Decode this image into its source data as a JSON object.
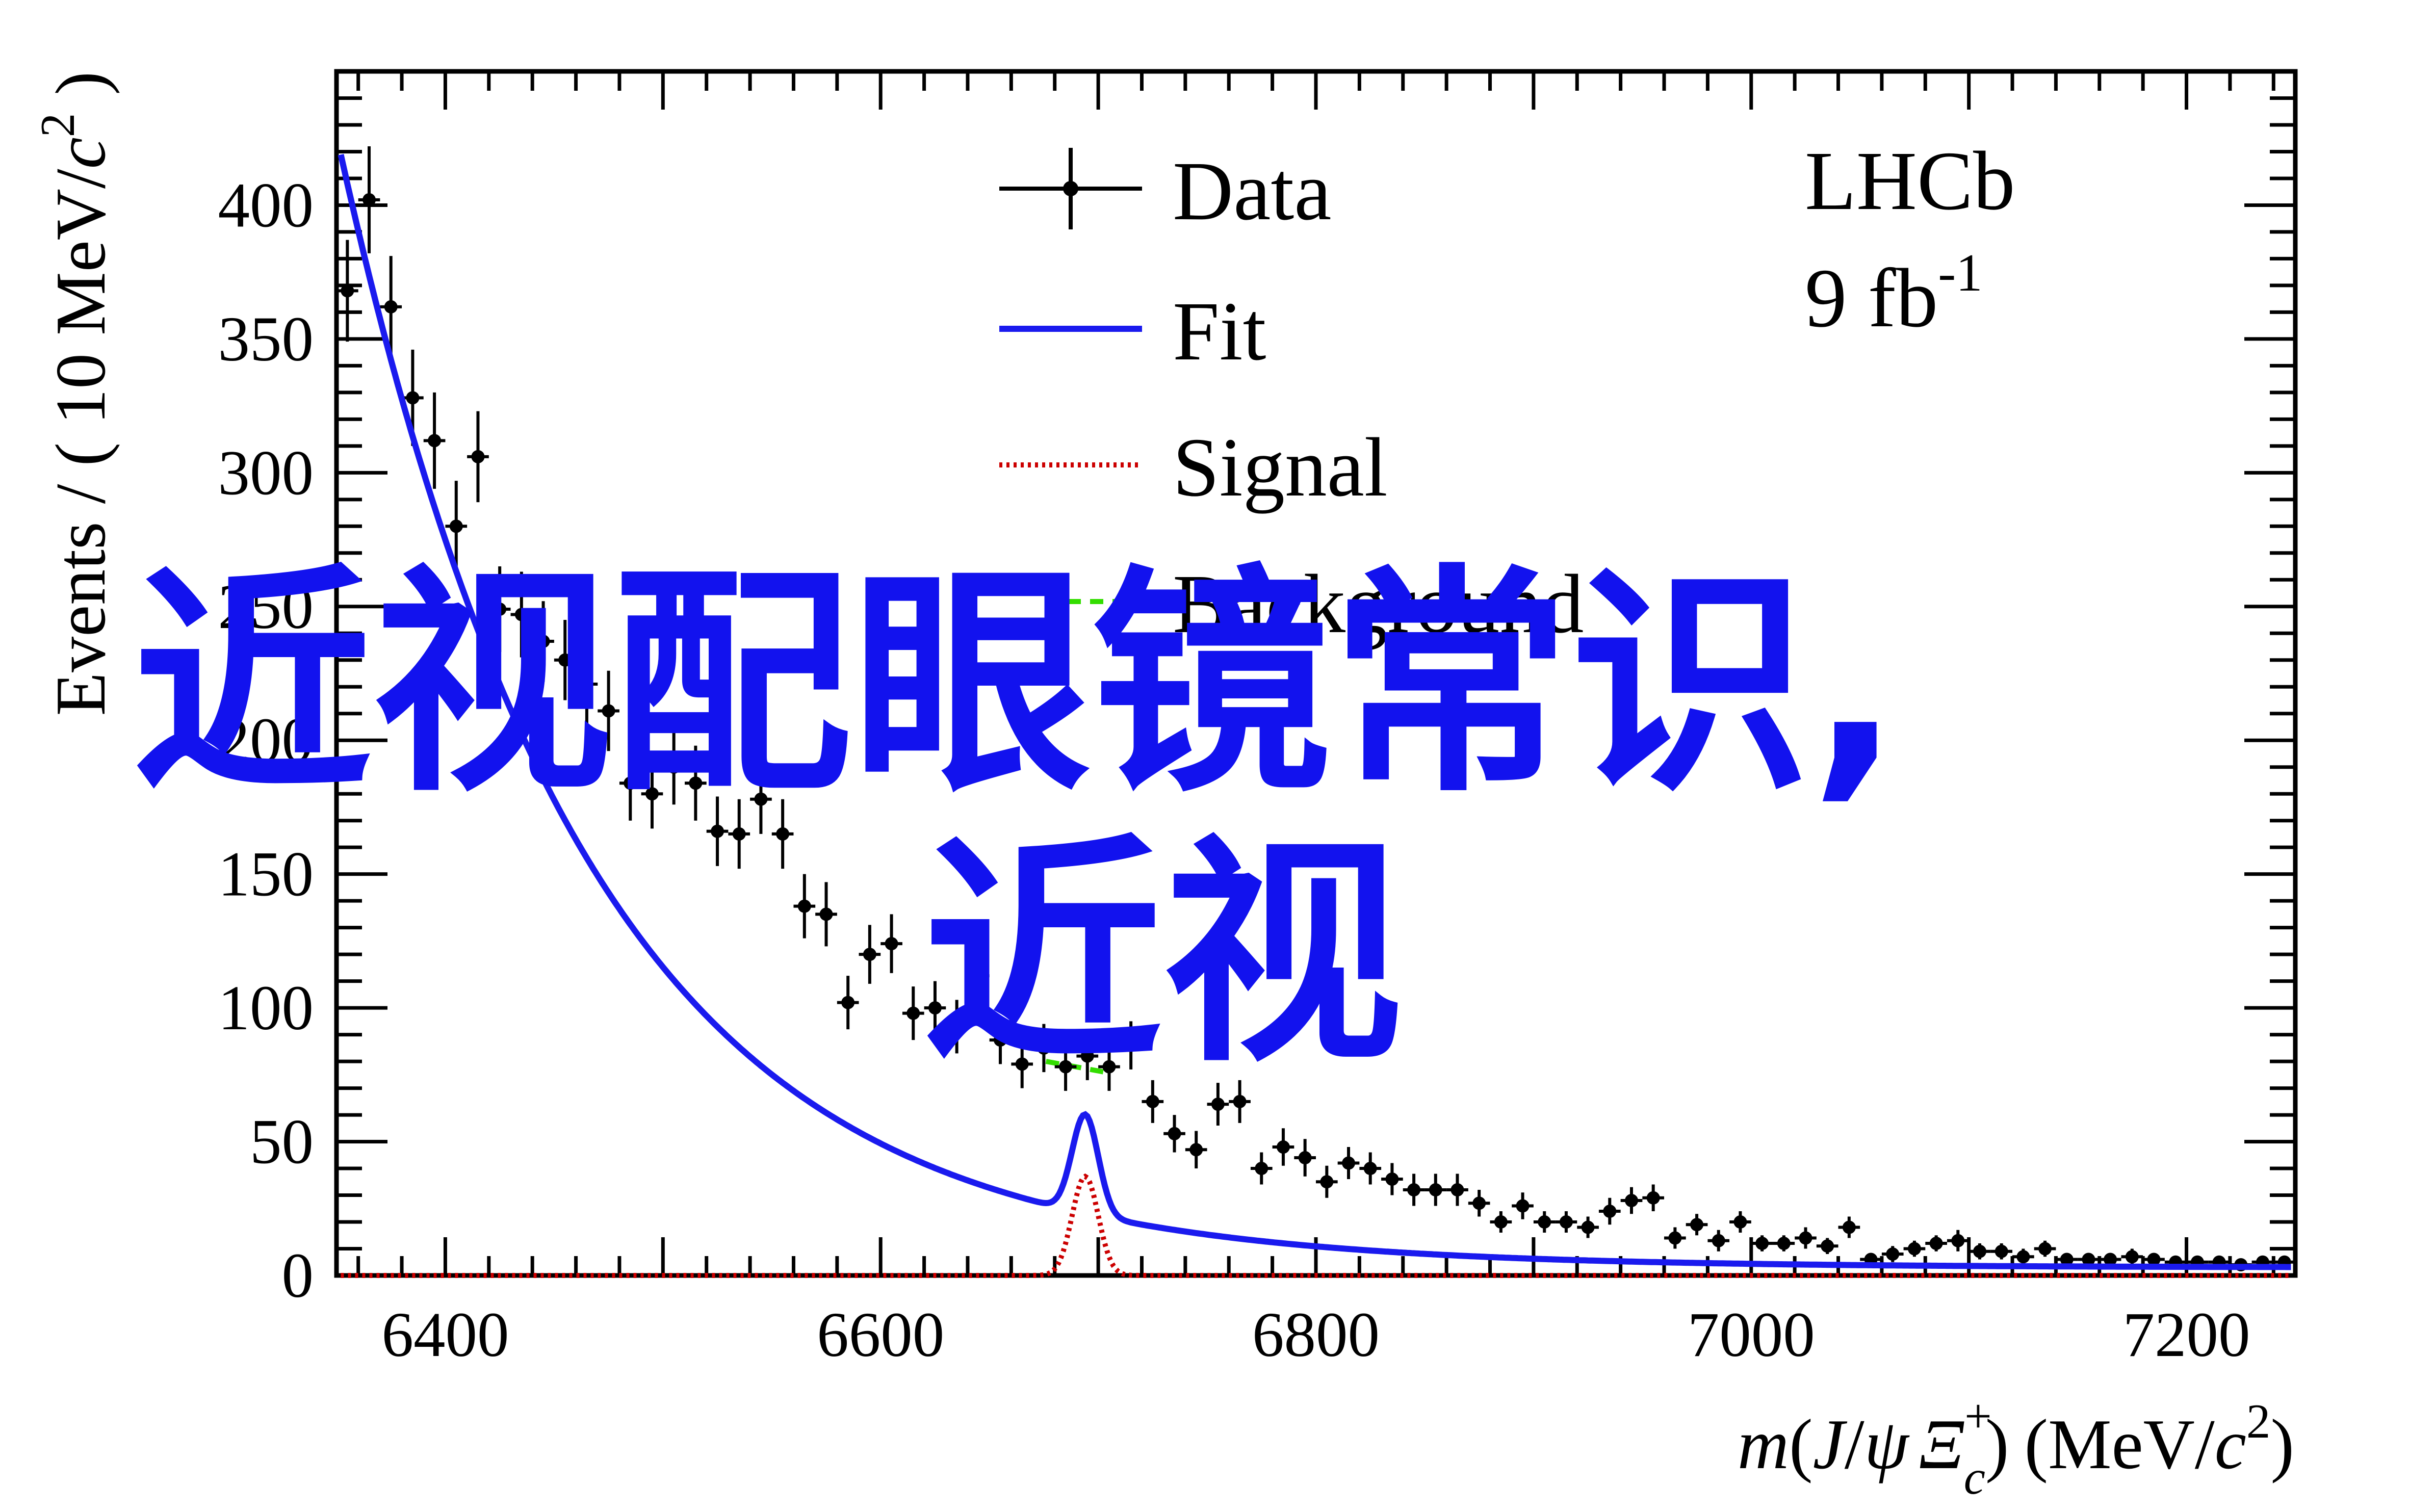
{
  "chart_data": {
    "type": "scatter",
    "xlabel": {
      "m": "m",
      "open": "(",
      "J": "J",
      "slash": "/",
      "psi": "ψ",
      "Xi": "Ξ",
      "sup": "+",
      "sub": "c",
      "close": ")",
      "units": "(MeV/",
      "c": "c",
      "two": "2",
      "end": ")"
    },
    "ylabel": {
      "events": "Events / ( 10 MeV/",
      "c": "c",
      "two": "2",
      "end": " )"
    },
    "xlim": [
      6350,
      7250
    ],
    "ylim": [
      0,
      450
    ],
    "x_ticks": [
      "6400",
      "6600",
      "6800",
      "7000",
      "7200"
    ],
    "y_ticks": [
      "0",
      "50",
      "100",
      "150",
      "200",
      "250",
      "300",
      "350",
      "400"
    ],
    "experiment": "LHCb",
    "luminosity": {
      "value": "9 fb",
      "exponent": "-1"
    },
    "legend": [
      {
        "label": "Data",
        "style": "points-with-errors"
      },
      {
        "label": "Fit",
        "style": "solid-blue"
      },
      {
        "label": "Signal",
        "style": "dotted-red"
      },
      {
        "label": "Background",
        "style": "dashed-green"
      }
    ],
    "series": [
      {
        "name": "Data",
        "x": [
          6355,
          6365,
          6375,
          6385,
          6395,
          6405,
          6415,
          6425,
          6435,
          6445,
          6455,
          6465,
          6475,
          6485,
          6495,
          6505,
          6515,
          6525,
          6535,
          6545,
          6555,
          6565,
          6575,
          6585,
          6595,
          6605,
          6615,
          6625,
          6635,
          6645,
          6655,
          6665,
          6675,
          6685,
          6695,
          6705,
          6715,
          6725,
          6735,
          6745,
          6755,
          6765,
          6775,
          6785,
          6795,
          6805,
          6815,
          6825,
          6835,
          6845,
          6855,
          6865,
          6875,
          6885,
          6895,
          6905,
          6915,
          6925,
          6935,
          6945,
          6955,
          6965,
          6975,
          6985,
          6995,
          7005,
          7015,
          7025,
          7035,
          7045,
          7055,
          7065,
          7075,
          7085,
          7095,
          7105,
          7115,
          7125,
          7135,
          7145,
          7155,
          7165,
          7175,
          7185,
          7195,
          7205,
          7215,
          7225,
          7235,
          7245
        ],
        "y": [
          368,
          402,
          362,
          328,
          312,
          280,
          306,
          249,
          247,
          237,
          230,
          221,
          211,
          184,
          180,
          190,
          184,
          166,
          165,
          178,
          165,
          138,
          135,
          102,
          120,
          124,
          98,
          100,
          93,
          112,
          88,
          79,
          85,
          78,
          82,
          78,
          86,
          65,
          53,
          47,
          64,
          65,
          40,
          48,
          44,
          35,
          42,
          40,
          36,
          32,
          32,
          32,
          27,
          20,
          26,
          20,
          20,
          18,
          24,
          28,
          29,
          14,
          19,
          13,
          20,
          12,
          12,
          14,
          11,
          18,
          6,
          8,
          10,
          12,
          13,
          9,
          9,
          7,
          10,
          6,
          6,
          6,
          7,
          6,
          5,
          5,
          5,
          4,
          5,
          5
        ],
        "errors": [
          19,
          20,
          19,
          18,
          18,
          17,
          17,
          16,
          16,
          15,
          15,
          15,
          15,
          14,
          13,
          14,
          14,
          13,
          13,
          13,
          13,
          12,
          12,
          10,
          11,
          11,
          10,
          10,
          10,
          11,
          9,
          9,
          9,
          9,
          9,
          9,
          9,
          8,
          7,
          7,
          8,
          8,
          6,
          7,
          7,
          6,
          6,
          6,
          6,
          6,
          6,
          6,
          5,
          4,
          5,
          4,
          4,
          4,
          5,
          5,
          5,
          4,
          4,
          4,
          4,
          3,
          3,
          4,
          3,
          4,
          2,
          3,
          3,
          3,
          4,
          3,
          3,
          3,
          3,
          2,
          2,
          2,
          3,
          2,
          2,
          2,
          2,
          2,
          2,
          2
        ]
      },
      {
        "name": "Fit",
        "model": {
          "bkg_amplitude": 405,
          "bkg_x0": 6355,
          "bkg_slope": 0.00885,
          "bkg_offset": 3,
          "sig_amplitude": 37,
          "sig_mean": 6694,
          "sig_sigma": 6
        }
      },
      {
        "name": "Signal",
        "model": {
          "sig_amplitude": 37,
          "sig_mean": 6694,
          "sig_sigma": 6
        }
      },
      {
        "name": "Background",
        "segments": [
          {
            "x": [
              6676,
              6703
            ],
            "y": [
              80,
              76
            ]
          }
        ]
      }
    ]
  },
  "overlay": {
    "line1": "近视配眼镜常识,",
    "line2": "近视"
  },
  "colors": {
    "fit": "#1a1aee",
    "signal": "#cc0000",
    "background": "#33dd00",
    "overlay": "#1212ee",
    "axis": "#000000"
  }
}
